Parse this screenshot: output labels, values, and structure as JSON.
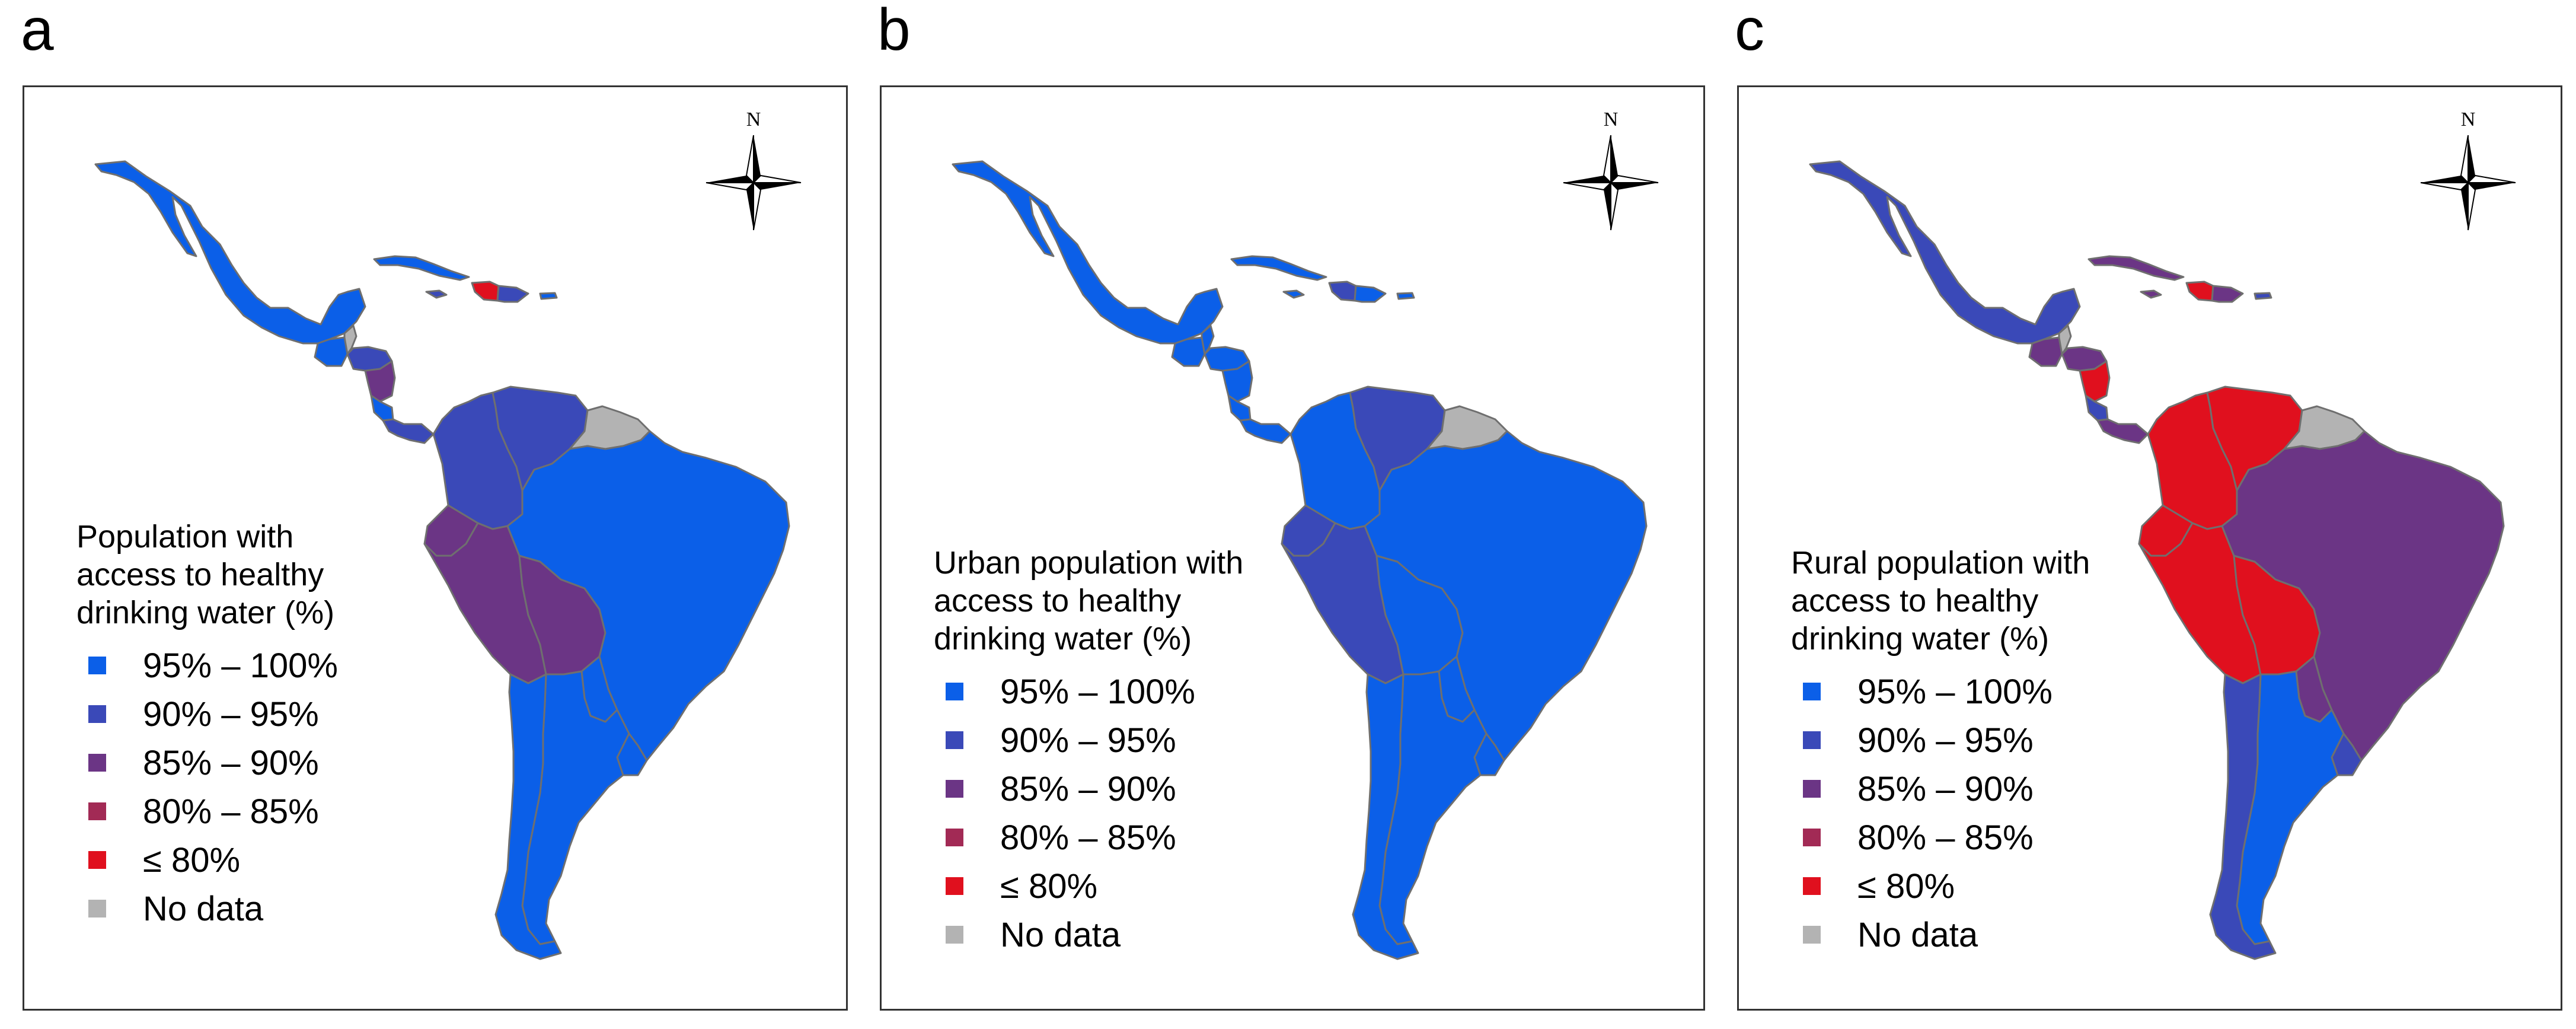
{
  "colors": {
    "c95_100": "#0b5fe8",
    "c90_95": "#3a49b8",
    "c85_90": "#6b3585",
    "c80_85": "#a22a55",
    "c_le80": "#e0101e",
    "c_nodata": "#b3b3b3",
    "border": "#6f6f6f"
  },
  "compass_label": "N",
  "panels": [
    {
      "letter": "a",
      "legend_title_lines": [
        "Population with",
        "access to healthy",
        "drinking water (%)"
      ],
      "regions": {
        "mexico": "c95_100",
        "guatemala": "c95_100",
        "belize": "c_nodata",
        "honduras": "c90_95",
        "nicaragua": "c85_90",
        "costa_rica": "c95_100",
        "panama": "c90_95",
        "cuba": "c95_100",
        "haiti": "c_le80",
        "dominican": "c90_95",
        "jamaica": "c90_95",
        "puerto_rico": "c95_100",
        "colombia": "c90_95",
        "venezuela": "c90_95",
        "guianas": "c_nodata",
        "ecuador": "c85_90",
        "peru": "c85_90",
        "bolivia": "c85_90",
        "brazil": "c95_100",
        "paraguay": "c95_100",
        "chile": "c95_100",
        "argentina": "c95_100",
        "uruguay": "c95_100"
      }
    },
    {
      "letter": "b",
      "legend_title_lines": [
        "Urban population with",
        "access to healthy",
        "drinking water (%)"
      ],
      "regions": {
        "mexico": "c95_100",
        "guatemala": "c95_100",
        "belize": "c95_100",
        "honduras": "c95_100",
        "nicaragua": "c95_100",
        "costa_rica": "c95_100",
        "panama": "c95_100",
        "cuba": "c95_100",
        "haiti": "c90_95",
        "dominican": "c95_100",
        "jamaica": "c95_100",
        "puerto_rico": "c95_100",
        "colombia": "c95_100",
        "venezuela": "c90_95",
        "guianas": "c_nodata",
        "ecuador": "c90_95",
        "peru": "c90_95",
        "bolivia": "c95_100",
        "brazil": "c95_100",
        "paraguay": "c95_100",
        "chile": "c95_100",
        "argentina": "c95_100",
        "uruguay": "c95_100"
      }
    },
    {
      "letter": "c",
      "legend_title_lines": [
        "Rural population with",
        "access to healthy",
        "drinking water (%)"
      ],
      "regions": {
        "mexico": "c90_95",
        "guatemala": "c85_90",
        "belize": "c_nodata",
        "honduras": "c85_90",
        "nicaragua": "c_le80",
        "costa_rica": "c90_95",
        "panama": "c85_90",
        "cuba": "c85_90",
        "haiti": "c_le80",
        "dominican": "c85_90",
        "jamaica": "c85_90",
        "puerto_rico": "c90_95",
        "colombia": "c_le80",
        "venezuela": "c_le80",
        "guianas": "c_nodata",
        "ecuador": "c_le80",
        "peru": "c_le80",
        "bolivia": "c_le80",
        "brazil": "c85_90",
        "paraguay": "c85_90",
        "chile": "c90_95",
        "argentina": "c95_100",
        "uruguay": "c90_95"
      }
    }
  ],
  "legend_items": [
    {
      "label": "95% – 100%",
      "color_key": "c95_100"
    },
    {
      "label": "90% – 95%",
      "color_key": "c90_95"
    },
    {
      "label": "85% – 90%",
      "color_key": "c85_90"
    },
    {
      "label": "80% – 85%",
      "color_key": "c80_85"
    },
    {
      "label": "≤ 80%",
      "color_key": "c_le80"
    },
    {
      "label": "No data",
      "color_key": "c_nodata"
    }
  ]
}
